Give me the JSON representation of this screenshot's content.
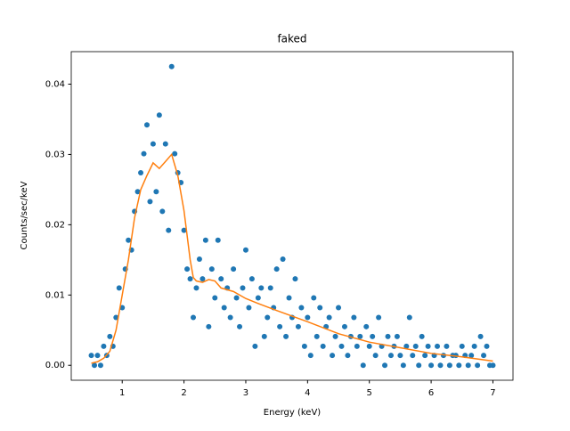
{
  "chart_data": {
    "type": "scatter",
    "title": "faked",
    "xlabel": "Energy (keV)",
    "ylabel": "Counts/sec/keV",
    "xlim": [
      0.175,
      7.325
    ],
    "ylim": [
      -0.002125,
      0.044625
    ],
    "xticks": [
      1,
      2,
      3,
      4,
      5,
      6,
      7
    ],
    "yticks": [
      {
        "value": 0,
        "label": "0.00"
      },
      {
        "value": 0.01,
        "label": "0.01"
      },
      {
        "value": 0.02,
        "label": "0.02"
      },
      {
        "value": 0.03,
        "label": "0.03"
      },
      {
        "value": 0.04,
        "label": "0.04"
      }
    ],
    "series": [
      {
        "kind": "scatter",
        "color": "#1f77b4",
        "x": [
          0.5,
          0.55,
          0.6,
          0.65,
          0.7,
          0.75,
          0.8,
          0.85,
          0.9,
          0.95,
          1.0,
          1.05,
          1.1,
          1.15,
          1.2,
          1.25,
          1.3,
          1.35,
          1.4,
          1.45,
          1.5,
          1.55,
          1.6,
          1.65,
          1.7,
          1.75,
          1.8,
          1.85,
          1.9,
          1.95,
          2.0,
          2.05,
          2.1,
          2.15,
          2.2,
          2.25,
          2.3,
          2.35,
          2.4,
          2.45,
          2.5,
          2.55,
          2.6,
          2.65,
          2.7,
          2.75,
          2.8,
          2.85,
          2.9,
          2.95,
          3.0,
          3.05,
          3.1,
          3.15,
          3.2,
          3.25,
          3.3,
          3.35,
          3.4,
          3.45,
          3.5,
          3.55,
          3.6,
          3.65,
          3.7,
          3.75,
          3.8,
          3.85,
          3.9,
          3.95,
          4.0,
          4.05,
          4.1,
          4.15,
          4.2,
          4.25,
          4.3,
          4.35,
          4.4,
          4.45,
          4.5,
          4.55,
          4.6,
          4.65,
          4.7,
          4.75,
          4.8,
          4.85,
          4.9,
          4.95,
          5.0,
          5.05,
          5.1,
          5.15,
          5.2,
          5.25,
          5.3,
          5.35,
          5.4,
          5.45,
          5.5,
          5.55,
          5.6,
          5.65,
          5.7,
          5.75,
          5.8,
          5.85,
          5.9,
          5.95,
          6.0,
          6.05,
          6.1,
          6.15,
          6.2,
          6.25,
          6.3,
          6.35,
          6.4,
          6.45,
          6.5,
          6.55,
          6.6,
          6.65,
          6.7,
          6.75,
          6.8,
          6.85,
          6.9,
          6.95,
          7.0
        ],
        "values": [
          0.0014,
          0,
          0.0014,
          0,
          0.0027,
          0.0014,
          0.0041,
          0.0027,
          0.0068,
          0.011,
          0.0082,
          0.0137,
          0.0178,
          0.0164,
          0.0219,
          0.0247,
          0.0274,
          0.0301,
          0.0342,
          0.0233,
          0.0315,
          0.0247,
          0.0356,
          0.0219,
          0.0315,
          0.0192,
          0.0425,
          0.0301,
          0.0274,
          0.026,
          0.0192,
          0.0137,
          0.0123,
          0.0068,
          0.011,
          0.0151,
          0.0123,
          0.0178,
          0.0055,
          0.0137,
          0.0096,
          0.0178,
          0.0123,
          0.0082,
          0.011,
          0.0068,
          0.0137,
          0.0096,
          0.0055,
          0.011,
          0.0164,
          0.0082,
          0.0123,
          0.0027,
          0.0096,
          0.011,
          0.0041,
          0.0068,
          0.011,
          0.0082,
          0.0137,
          0.0055,
          0.0151,
          0.0041,
          0.0096,
          0.0068,
          0.0123,
          0.0055,
          0.0082,
          0.0027,
          0.0068,
          0.0014,
          0.0096,
          0.0041,
          0.0082,
          0.0027,
          0.0055,
          0.0068,
          0.0014,
          0.0041,
          0.0082,
          0.0027,
          0.0055,
          0.0014,
          0.0041,
          0.0068,
          0.0027,
          0.0041,
          0,
          0.0055,
          0.0027,
          0.0041,
          0.0014,
          0.0068,
          0.0027,
          0,
          0.0041,
          0.0014,
          0.0027,
          0.0041,
          0.0014,
          0,
          0.0027,
          0.0068,
          0.0014,
          0.0027,
          0,
          0.0041,
          0.0014,
          0.0027,
          0,
          0.0014,
          0.0027,
          0,
          0.0014,
          0.0027,
          0,
          0.0014,
          0.0014,
          0,
          0.0027,
          0.0014,
          0,
          0.0014,
          0.0027,
          0,
          0.0041,
          0.0014,
          0.0027,
          0,
          0
        ]
      },
      {
        "kind": "line",
        "color": "#ff7f0e",
        "x": [
          0.5,
          0.6,
          0.7,
          0.8,
          0.9,
          1.0,
          1.1,
          1.2,
          1.3,
          1.4,
          1.5,
          1.6,
          1.7,
          1.8,
          1.9,
          2.0,
          2.1,
          2.15,
          2.2,
          2.3,
          2.4,
          2.5,
          2.6,
          2.8,
          3.0,
          3.2,
          3.5,
          4.0,
          4.5,
          5.0,
          5.5,
          6.0,
          6.5,
          7.0
        ],
        "values": [
          0.0003,
          0.0005,
          0.001,
          0.002,
          0.005,
          0.01,
          0.015,
          0.021,
          0.025,
          0.027,
          0.0288,
          0.028,
          0.029,
          0.03,
          0.027,
          0.022,
          0.015,
          0.0125,
          0.012,
          0.0118,
          0.0122,
          0.012,
          0.011,
          0.0105,
          0.0095,
          0.0088,
          0.0078,
          0.0062,
          0.0045,
          0.0033,
          0.0025,
          0.0017,
          0.0012,
          0.0006
        ]
      }
    ]
  }
}
